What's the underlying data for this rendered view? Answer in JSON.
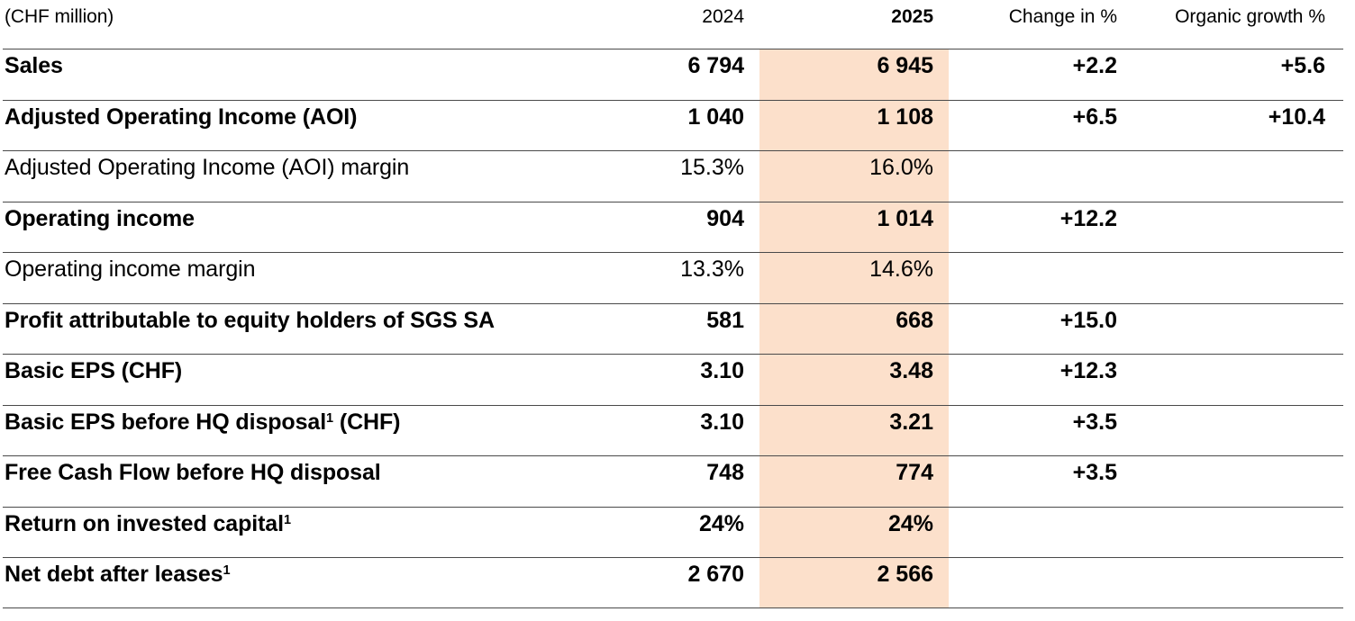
{
  "table": {
    "unit_label": "(CHF million)",
    "columns": {
      "y2024": "2024",
      "y2025": "2025",
      "change": "Change in %",
      "organic": "Organic growth %"
    },
    "colors": {
      "highlight_2025_column": "#fce0cb",
      "rule": "#4a4a4a",
      "text": "#000000"
    },
    "rows": [
      {
        "label": "Sales",
        "sup": "",
        "suffix": "",
        "bold": true,
        "y2024": "6 794",
        "y2025": "6 945",
        "change": "+2.2",
        "organic": "+5.6"
      },
      {
        "label": "Adjusted Operating Income (AOI)",
        "sup": "",
        "suffix": "",
        "bold": true,
        "y2024": "1 040",
        "y2025": "1 108",
        "change": "+6.5",
        "organic": "+10.4"
      },
      {
        "label": "Adjusted Operating Income (AOI) margin",
        "sup": "",
        "suffix": "",
        "bold": false,
        "y2024": "15.3%",
        "y2025": "16.0%",
        "change": "",
        "organic": ""
      },
      {
        "label": "Operating income",
        "sup": "",
        "suffix": "",
        "bold": true,
        "y2024": "904",
        "y2025": "1 014",
        "change": "+12.2",
        "organic": ""
      },
      {
        "label": "Operating income margin",
        "sup": "",
        "suffix": "",
        "bold": false,
        "y2024": "13.3%",
        "y2025": "14.6%",
        "change": "",
        "organic": ""
      },
      {
        "label": "Profit attributable to equity holders of SGS SA",
        "sup": "",
        "suffix": "",
        "bold": true,
        "y2024": "581",
        "y2025": "668",
        "change": "+15.0",
        "organic": ""
      },
      {
        "label": "Basic EPS (CHF)",
        "sup": "",
        "suffix": "",
        "bold": true,
        "y2024": "3.10",
        "y2025": "3.48",
        "change": "+12.3",
        "organic": ""
      },
      {
        "label": "Basic EPS before HQ disposal",
        "sup": "1",
        "suffix": " (CHF)",
        "bold": true,
        "y2024": "3.10",
        "y2025": "3.21",
        "change": "+3.5",
        "organic": ""
      },
      {
        "label": "Free Cash Flow before HQ disposal",
        "sup": "",
        "suffix": "",
        "bold": true,
        "y2024": "748",
        "y2025": "774",
        "change": "+3.5",
        "organic": ""
      },
      {
        "label": "Return on invested capital",
        "sup": "1",
        "suffix": "",
        "bold": true,
        "y2024": "24%",
        "y2025": "24%",
        "change": "",
        "organic": ""
      },
      {
        "label": "Net debt after leases",
        "sup": "1",
        "suffix": "",
        "bold": true,
        "y2024": "2 670",
        "y2025": "2 566",
        "change": "",
        "organic": ""
      }
    ]
  }
}
